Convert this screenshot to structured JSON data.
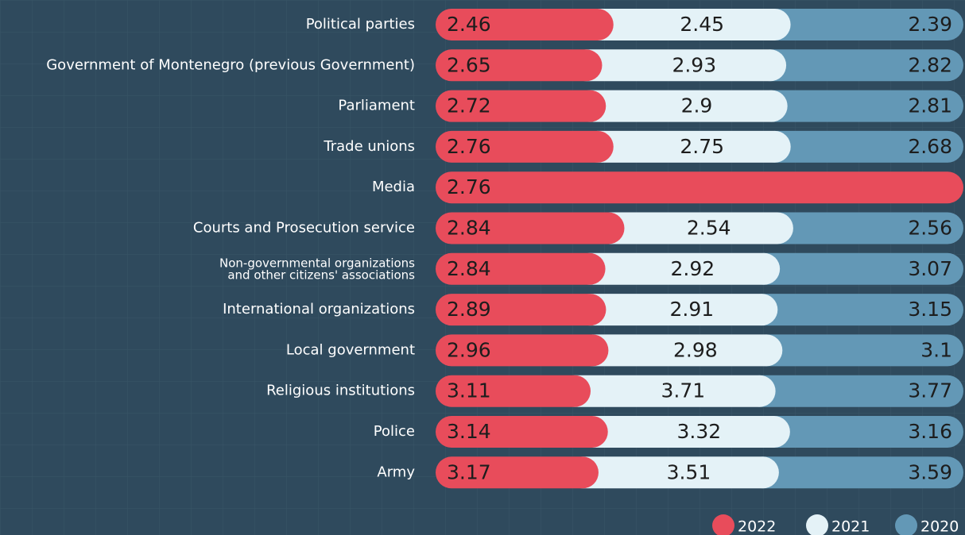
{
  "chart_data": {
    "type": "bar",
    "stacked": true,
    "normalized": true,
    "categories": [
      "Political parties",
      "Government of Montenegro (previous Government)",
      "Parliament",
      "Trade unions",
      "Media",
      "Courts and Prosecution service",
      "Non-governmental organizations\nand other citizens' associations",
      "International organizations",
      "Local government",
      "Religious institutions",
      "Police",
      "Army"
    ],
    "series": [
      {
        "name": "2022",
        "color": "#e84c5b",
        "values": [
          2.46,
          2.65,
          2.72,
          2.76,
          2.76,
          2.84,
          2.84,
          2.89,
          2.96,
          3.11,
          3.14,
          3.17
        ]
      },
      {
        "name": "2021",
        "color": "#e4f2f7",
        "values": [
          2.45,
          2.93,
          2.9,
          2.75,
          null,
          2.54,
          2.92,
          2.91,
          2.98,
          3.71,
          3.32,
          3.51
        ]
      },
      {
        "name": "2020",
        "color": "#6398b6",
        "values": [
          2.39,
          2.82,
          2.81,
          2.68,
          null,
          2.56,
          3.07,
          3.15,
          3.1,
          3.77,
          3.16,
          3.59
        ]
      }
    ],
    "legend": "bottom-right"
  }
}
